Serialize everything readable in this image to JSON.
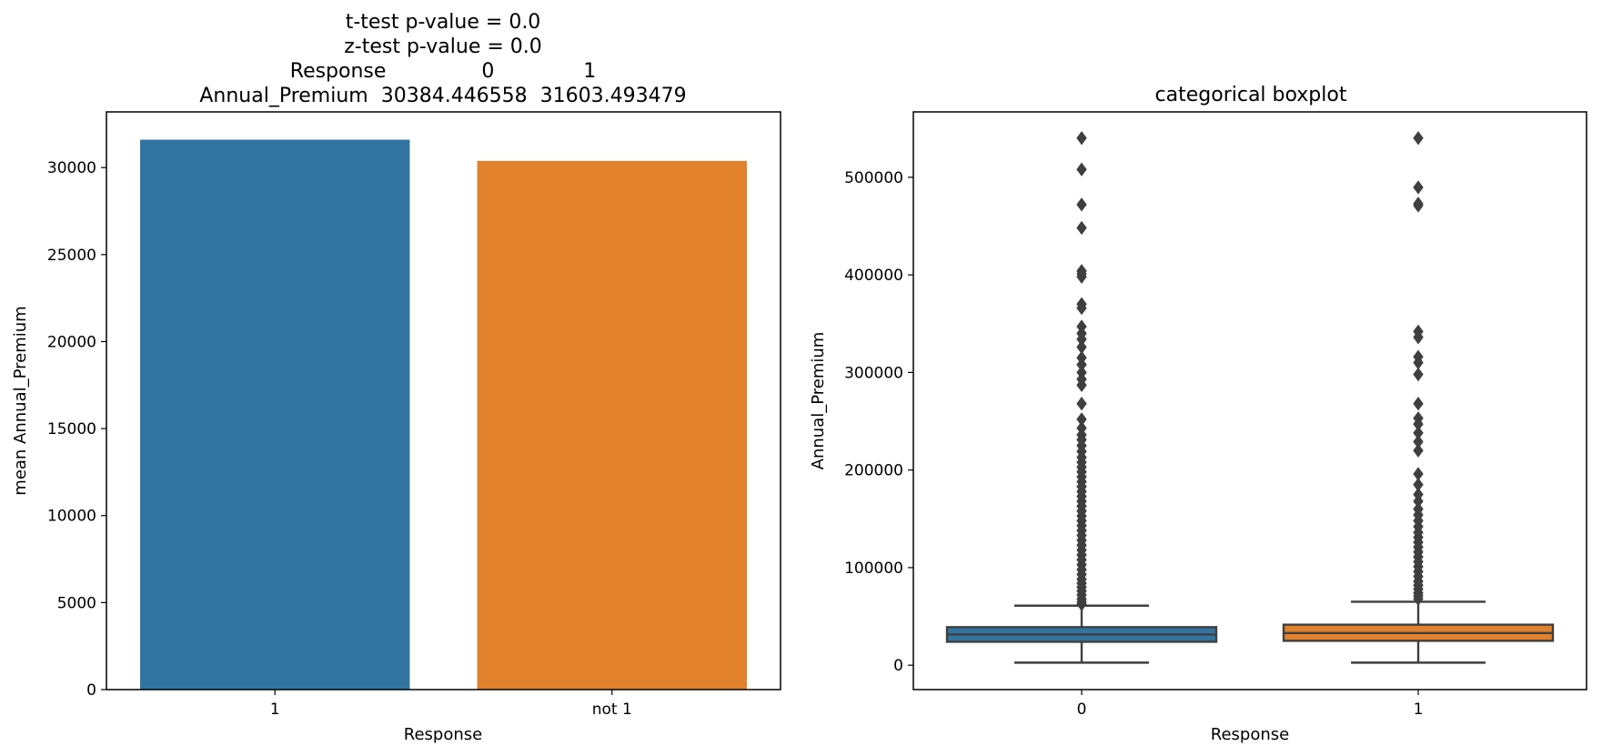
{
  "chart_data": [
    {
      "type": "bar",
      "title_lines": [
        "t-test p-value = 0.0",
        "z-test p-value = 0.0",
        "Response               0              1",
        "Annual_Premium  30384.446558  31603.493479"
      ],
      "xlabel": "Response",
      "ylabel": "mean Annual_Premium",
      "categories": [
        "1",
        "not 1"
      ],
      "values": [
        31603.493479,
        30384.446558
      ],
      "colors": [
        "#3274a1",
        "#e1812c"
      ],
      "ylim": [
        0,
        33200
      ],
      "yticks": [
        0,
        5000,
        10000,
        15000,
        20000,
        25000,
        30000
      ],
      "ytick_labels": [
        "0",
        "5000",
        "10000",
        "15000",
        "20000",
        "25000",
        "30000"
      ],
      "grid": false
    },
    {
      "type": "box",
      "title": "categorical boxplot",
      "xlabel": "Response",
      "ylabel": "Annual_Premium",
      "categories": [
        "0",
        "1"
      ],
      "colors": [
        "#3274a1",
        "#e1812c"
      ],
      "edge_color": "#3f3f3f",
      "ylim": [
        -25000,
        567000
      ],
      "yticks": [
        0,
        100000,
        200000,
        300000,
        400000,
        500000
      ],
      "ytick_labels": [
        "0",
        "100000",
        "200000",
        "300000",
        "400000",
        "500000"
      ],
      "grid": false,
      "boxes": [
        {
          "category": "0",
          "whisker_low": 2630,
          "q1": 24000,
          "median": 31500,
          "q3": 39000,
          "whisker_high": 61000,
          "outliers": [
            540165,
            508073,
            472042,
            448156,
            404000,
            401000,
            398000,
            370000,
            366000,
            347000,
            340000,
            334000,
            326000,
            315000,
            308000,
            300000,
            293000,
            287000,
            268000,
            252000,
            243000,
            236000,
            231000,
            225000,
            219000,
            213000,
            208000,
            203000,
            198000,
            193000,
            188000,
            183000,
            178000,
            173000,
            168000,
            163000,
            158000,
            153000,
            148000,
            143000,
            138000,
            133000,
            128000,
            123000,
            118000,
            113000,
            108000,
            103000,
            98000,
            93000,
            88000,
            84000,
            80000,
            76000,
            72000,
            68000,
            65000,
            62500
          ]
        },
        {
          "category": "1",
          "whisker_low": 2630,
          "q1": 25000,
          "median": 33000,
          "q3": 41500,
          "whisker_high": 65000,
          "outliers": [
            540165,
            489663,
            473000,
            471000,
            342000,
            336000,
            316000,
            310000,
            298000,
            268000,
            253000,
            247000,
            238000,
            229000,
            220000,
            196000,
            185000,
            175000,
            168000,
            160000,
            154000,
            148000,
            142000,
            136000,
            131000,
            126000,
            121000,
            116000,
            111000,
            106000,
            101000,
            96000,
            91000,
            86000,
            82000,
            78000,
            74000,
            71000,
            68000
          ]
        }
      ]
    }
  ]
}
